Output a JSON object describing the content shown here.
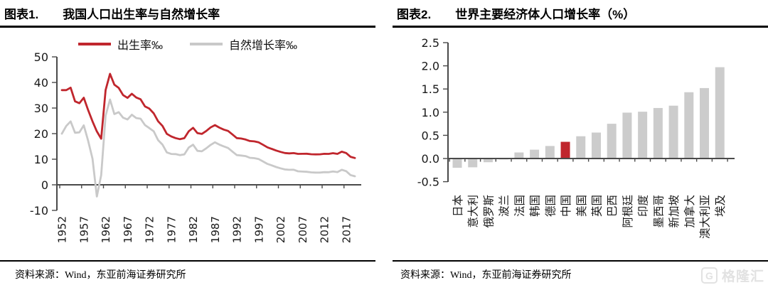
{
  "panels": [
    {
      "title_prefix": "图表1.",
      "title": "我国人口出生率与自然增长率",
      "source_label": "资料来源：",
      "source": "Wind，东亚前海证券研究所"
    },
    {
      "title_prefix": "图表2.",
      "title": "世界主要经济体人口增长率（%）",
      "source_label": "资料来源：",
      "source": "Wind，东亚前海证券研究所"
    }
  ],
  "watermark": {
    "icon": "G",
    "text": "格隆汇"
  },
  "colors": {
    "accent_red": "#c0262d",
    "line_gray": "#c9c9c9",
    "bar_gray": "#cccccc",
    "axis": "#4a4a4a",
    "label": "#1a1a1a"
  },
  "chart_data": [
    {
      "type": "line",
      "title": "图表1. 我国人口出生率与自然增长率",
      "x_start": 1952,
      "x_end": 2019,
      "xticks": [
        1952,
        1957,
        1962,
        1967,
        1972,
        1977,
        1982,
        1987,
        1992,
        1997,
        2002,
        2007,
        2012,
        2017
      ],
      "ylim": [
        -10,
        50
      ],
      "yticks": [
        -10,
        0,
        10,
        20,
        30,
        40,
        50
      ],
      "grid": false,
      "legend_position": "top-center",
      "series": [
        {
          "name": "出生率‰",
          "color": "#c0262d",
          "values": [
            37.0,
            37.0,
            37.97,
            32.6,
            31.9,
            34.03,
            29.22,
            24.78,
            20.86,
            18.02,
            37.01,
            43.37,
            39.14,
            37.88,
            35.05,
            33.96,
            35.59,
            34.11,
            33.43,
            30.65,
            29.77,
            27.93,
            24.82,
            23.01,
            19.91,
            18.93,
            18.25,
            17.82,
            18.21,
            20.91,
            22.28,
            20.19,
            19.9,
            21.04,
            22.43,
            23.33,
            22.37,
            21.58,
            21.06,
            19.68,
            18.24,
            18.09,
            17.7,
            17.12,
            16.98,
            16.57,
            15.64,
            14.64,
            14.03,
            13.38,
            12.86,
            12.41,
            12.29,
            12.4,
            12.09,
            12.1,
            12.14,
            11.95,
            11.9,
            11.93,
            12.1,
            12.08,
            12.37,
            12.07,
            12.95,
            12.43,
            10.94,
            10.48
          ]
        },
        {
          "name": "自然增长率‰",
          "color": "#c9c9c9",
          "values": [
            20.0,
            23.0,
            24.79,
            20.32,
            20.5,
            23.23,
            17.24,
            10.19,
            -4.57,
            3.78,
            26.99,
            33.33,
            27.64,
            28.38,
            26.22,
            25.53,
            27.38,
            26.08,
            25.83,
            23.33,
            22.16,
            20.89,
            17.48,
            15.69,
            12.66,
            12.06,
            12.0,
            11.61,
            11.87,
            14.55,
            15.68,
            13.29,
            13.08,
            14.26,
            15.57,
            16.61,
            15.73,
            15.04,
            14.39,
            12.98,
            11.6,
            11.45,
            11.21,
            10.55,
            10.42,
            10.06,
            9.14,
            8.18,
            7.58,
            6.95,
            6.45,
            6.01,
            5.87,
            5.89,
            5.28,
            5.17,
            5.08,
            4.87,
            4.79,
            4.79,
            4.95,
            4.92,
            5.21,
            4.96,
            5.86,
            5.32,
            3.81,
            3.34
          ]
        }
      ]
    },
    {
      "type": "bar",
      "title": "图表2. 世界主要经济体人口增长率（%）",
      "categories": [
        "日本",
        "意大利",
        "俄罗斯",
        "波兰",
        "法国",
        "韩国",
        "德国",
        "中国",
        "美国",
        "英国",
        "巴西",
        "阿根廷",
        "印度",
        "墨西哥",
        "新加坡",
        "加拿大",
        "澳大利亚",
        "埃及"
      ],
      "values": [
        -0.2,
        -0.19,
        -0.08,
        -0.02,
        0.13,
        0.19,
        0.27,
        0.36,
        0.48,
        0.56,
        0.75,
        0.99,
        1.01,
        1.09,
        1.14,
        1.43,
        1.52,
        1.97
      ],
      "highlight_category": "中国",
      "highlight_index": 7,
      "bar_color": "#cccccc",
      "highlight_color": "#c0262d",
      "ylim": [
        -0.5,
        2.5
      ],
      "yticks": [
        -0.5,
        0.0,
        0.5,
        1.0,
        1.5,
        2.0,
        2.5
      ],
      "grid": false
    }
  ]
}
